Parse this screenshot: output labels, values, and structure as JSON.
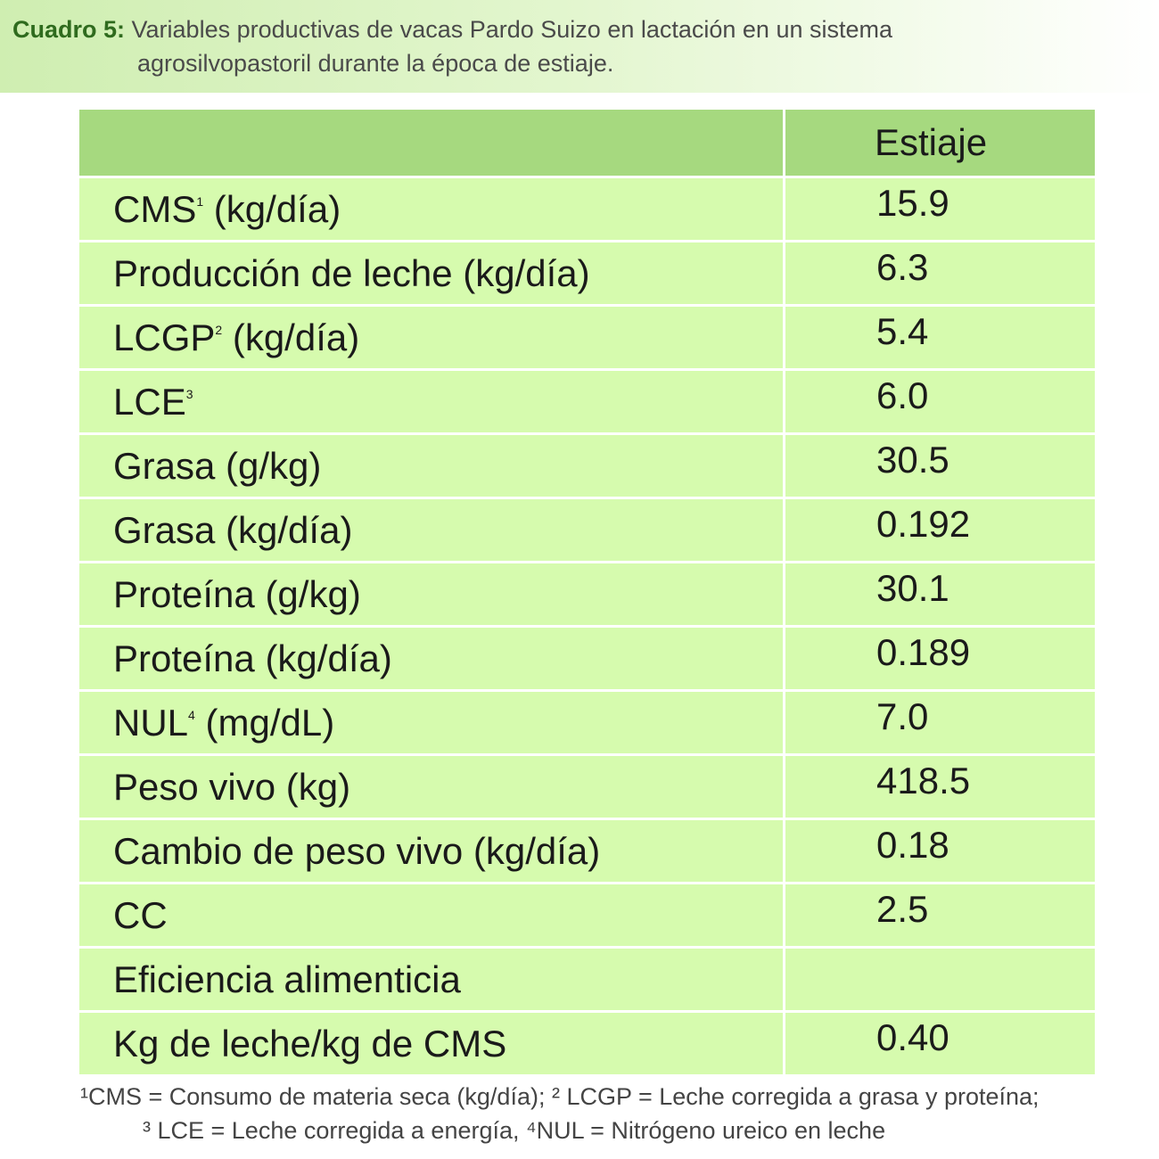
{
  "caption": {
    "label": "Cuadro 5:",
    "title_line1": "Variables productivas de vacas Pardo Suizo en lactación en un sistema",
    "title_line2": "agrosilvopastoril durante la época de estiaje."
  },
  "table": {
    "header": {
      "variable": "",
      "value": "Estiaje"
    },
    "rows": [
      {
        "label": "CMS",
        "sup": "1",
        "unit": " (kg/día)",
        "value": "15.9"
      },
      {
        "label": "Producción de leche (kg/día)",
        "sup": "",
        "unit": "",
        "value": "6.3"
      },
      {
        "label": "LCGP",
        "sup": "2",
        "unit": " (kg/día)",
        "value": "5.4"
      },
      {
        "label": "LCE",
        "sup": "3",
        "unit": "",
        "value": "6.0"
      },
      {
        "label": "Grasa (g/kg)",
        "sup": "",
        "unit": "",
        "value": "30.5"
      },
      {
        "label": "Grasa (kg/día)",
        "sup": "",
        "unit": "",
        "value": "0.192"
      },
      {
        "label": "Proteína (g/kg)",
        "sup": "",
        "unit": "",
        "value": "30.1"
      },
      {
        "label": "Proteína (kg/día)",
        "sup": "",
        "unit": "",
        "value": "0.189"
      },
      {
        "label": "NUL",
        "sup": "4",
        "unit": " (mg/dL)",
        "value": "7.0"
      },
      {
        "label": "Peso vivo (kg)",
        "sup": "",
        "unit": "",
        "value": "418.5"
      },
      {
        "label": "Cambio de peso vivo (kg/día)",
        "sup": "",
        "unit": "",
        "value": "0.18"
      },
      {
        "label": "CC",
        "sup": "",
        "unit": "",
        "value": "2.5"
      },
      {
        "label": "Eficiencia alimenticia",
        "sup": "",
        "unit": "",
        "value": ""
      },
      {
        "label": "Kg de leche/kg de CMS",
        "sup": "",
        "unit": "",
        "value": "0.40"
      }
    ]
  },
  "footnote": {
    "line1": "¹CMS = Consumo de materia seca (kg/día); ² LCGP = Leche corregida a grasa y proteína;",
    "line2": "³ LCE = Leche corregida a energía, ⁴NUL = Nitrógeno ureico en leche"
  },
  "colors": {
    "header_bg": "#a6d97f",
    "row_bg": "#d6fbae",
    "caption_label": "#2f6b1e",
    "caption_bg": "#cfeeb1"
  }
}
